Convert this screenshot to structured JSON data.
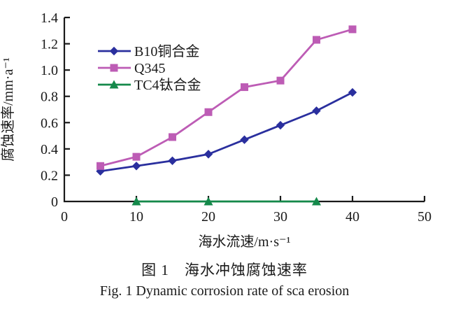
{
  "figure": {
    "caption_cn": "图 1　海水冲蚀腐蚀速率",
    "caption_en": "Fig. 1 Dynamic corrosion rate of sca erosion"
  },
  "chart_data": {
    "type": "line",
    "title": "",
    "xlabel": "海水流速/m·s⁻¹",
    "ylabel": "腐蚀速率/mm·a⁻¹",
    "xlim": [
      0,
      50
    ],
    "ylim": [
      0,
      1.4
    ],
    "x_ticks": [
      0,
      10,
      20,
      30,
      40,
      50
    ],
    "x_tick_labels": [
      "0",
      "10",
      "20",
      "30",
      "40",
      "50"
    ],
    "y_ticks": [
      0,
      0.2,
      0.4,
      0.6,
      0.8,
      1.0,
      1.2,
      1.4
    ],
    "y_tick_labels": [
      "0",
      "0.2",
      "0.4",
      "0.6",
      "0.8",
      "1.0",
      "1.2",
      "1.4"
    ],
    "grid": false,
    "legend_position": "upper-left-inside",
    "axis_color": "#1a1a1a",
    "series": [
      {
        "name": "B10铜合金",
        "marker": "diamond",
        "color": "#2a2f9e",
        "x": [
          5,
          10,
          15,
          20,
          25,
          30,
          35,
          40
        ],
        "y": [
          0.23,
          0.27,
          0.31,
          0.36,
          0.47,
          0.58,
          0.69,
          0.83
        ]
      },
      {
        "name": "Q345",
        "marker": "square",
        "color": "#bd5cb5",
        "x": [
          5,
          10,
          15,
          20,
          25,
          30,
          35,
          40
        ],
        "y": [
          0.27,
          0.34,
          0.49,
          0.68,
          0.87,
          0.92,
          1.23,
          1.31
        ]
      },
      {
        "name": "TC4钛合金",
        "marker": "triangle",
        "color": "#14894a",
        "x": [
          10,
          20,
          35
        ],
        "y": [
          0,
          0,
          0
        ]
      }
    ]
  }
}
